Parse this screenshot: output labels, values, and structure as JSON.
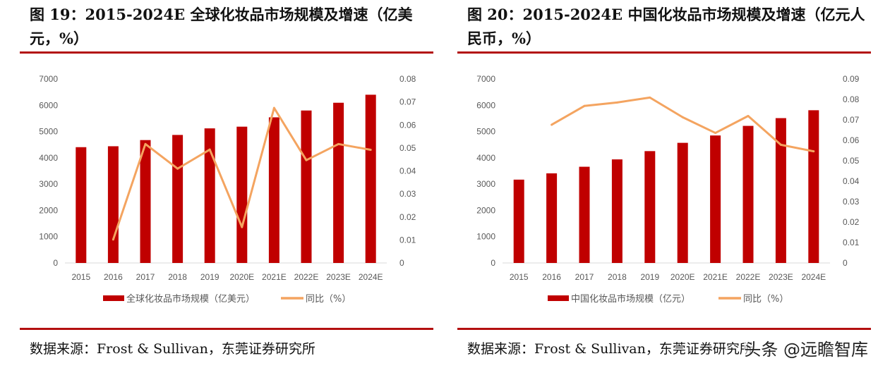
{
  "colors": {
    "bar": "#c00000",
    "line": "#f4a460",
    "accent": "#b30f0f"
  },
  "watermark": "头条 @远瞻智库",
  "chart_data": [
    {
      "type": "bar+line",
      "title": "图 19：2015-2024E  全球化妆品市场规模及增速（亿美元，%）",
      "source": "数据来源：Frost & Sullivan，东莞证券研究所",
      "categories": [
        "2015",
        "2016",
        "2017",
        "2018",
        "2019",
        "2020E",
        "2021E",
        "2022E",
        "2023E",
        "2024E"
      ],
      "ylim": [
        0,
        7000
      ],
      "yticks": [
        "0",
        "1000",
        "2000",
        "3000",
        "4000",
        "5000",
        "6000",
        "7000"
      ],
      "y2lim": [
        0,
        0.08
      ],
      "y2ticks": [
        "0",
        "0.01",
        "0.02",
        "0.03",
        "0.04",
        "0.05",
        "0.06",
        "0.07",
        "0.08"
      ],
      "legend": "bottom",
      "series": [
        {
          "name": "全球化妆品市场规模（亿美元）",
          "type": "bar",
          "axis": "left",
          "values": [
            4405,
            4440,
            4675,
            4870,
            5120,
            5185,
            5540,
            5800,
            6095,
            6400
          ]
        },
        {
          "name": "同比（%）",
          "type": "line",
          "axis": "right",
          "values": [
            null,
            0.0102,
            0.0517,
            0.041,
            0.0493,
            0.0156,
            0.0674,
            0.0447,
            0.0517,
            0.0492
          ]
        }
      ]
    },
    {
      "type": "bar+line",
      "title": "图 20：2015-2024E 中国化妆品市场规模及增速（亿元人民币，%）",
      "source": "数据来源：Frost & Sullivan，东莞证券研究所",
      "categories": [
        "2015",
        "2016",
        "2017",
        "2018",
        "2019",
        "2020E",
        "2021E",
        "2022E",
        "2023E",
        "2024E"
      ],
      "ylim": [
        0,
        7000
      ],
      "yticks": [
        "0",
        "1000",
        "2000",
        "3000",
        "4000",
        "5000",
        "6000",
        "7000"
      ],
      "y2lim": [
        0,
        0.09
      ],
      "y2ticks": [
        "0",
        "0.01",
        "0.02",
        "0.03",
        "0.04",
        "0.05",
        "0.06",
        "0.07",
        "0.08",
        "0.09"
      ],
      "legend": "bottom",
      "series": [
        {
          "name": "中国化妆品市场规模（亿元）",
          "type": "bar",
          "axis": "left",
          "values": [
            3170,
            3410,
            3660,
            3940,
            4255,
            4570,
            4850,
            5215,
            5510,
            5810
          ]
        },
        {
          "name": "同比（%）",
          "type": "line",
          "axis": "right",
          "values": [
            null,
            0.0676,
            0.0768,
            0.0785,
            0.0809,
            0.0713,
            0.0636,
            0.0719,
            0.0578,
            0.0546
          ]
        }
      ]
    }
  ]
}
